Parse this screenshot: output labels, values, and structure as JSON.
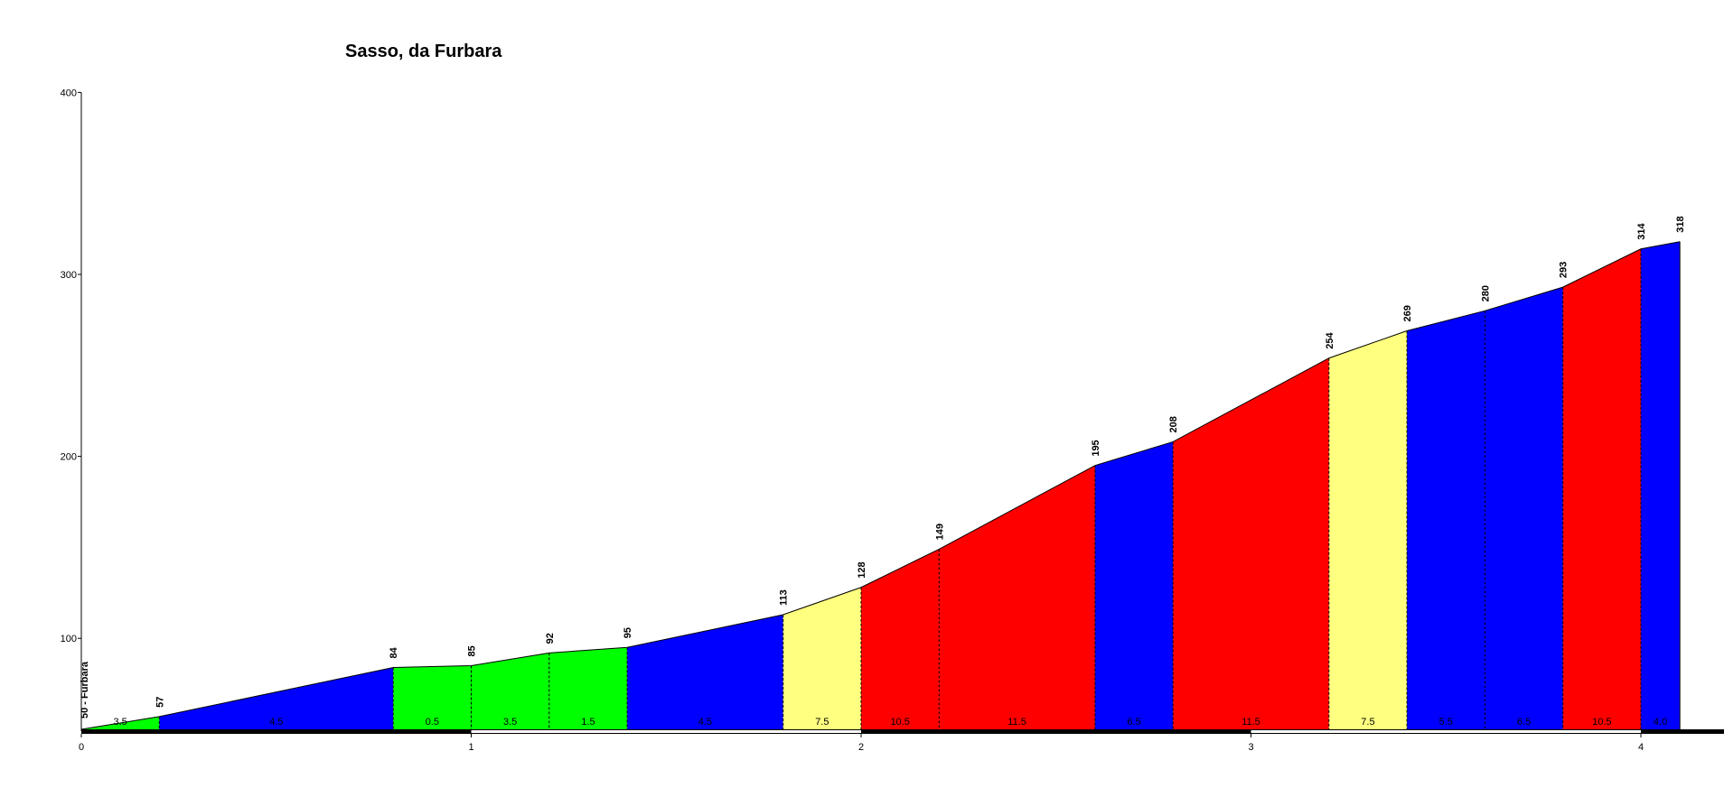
{
  "chart_data": {
    "type": "area",
    "title": "Sasso, da Furbara",
    "xlabel": "",
    "ylabel": "",
    "xlim": [
      0,
      4.2
    ],
    "ylim": [
      50,
      400
    ],
    "x_ticks": [
      "0",
      "1",
      "2",
      "3",
      "4"
    ],
    "y_ticks": [
      "100",
      "200",
      "300",
      "400"
    ],
    "start_label": "50 - Furbara",
    "points": [
      {
        "x": 0.0,
        "y": 50
      },
      {
        "x": 0.2,
        "y": 57
      },
      {
        "x": 0.8,
        "y": 84
      },
      {
        "x": 1.0,
        "y": 85
      },
      {
        "x": 1.2,
        "y": 92
      },
      {
        "x": 1.4,
        "y": 95
      },
      {
        "x": 1.8,
        "y": 113
      },
      {
        "x": 2.0,
        "y": 128
      },
      {
        "x": 2.2,
        "y": 149
      },
      {
        "x": 2.6,
        "y": 195
      },
      {
        "x": 2.8,
        "y": 208
      },
      {
        "x": 3.2,
        "y": 254
      },
      {
        "x": 3.4,
        "y": 269
      },
      {
        "x": 3.6,
        "y": 280
      },
      {
        "x": 3.8,
        "y": 293
      },
      {
        "x": 4.0,
        "y": 314
      },
      {
        "x": 4.1,
        "y": 318
      }
    ],
    "elevation_labels": [
      "57",
      "84",
      "85",
      "92",
      "95",
      "113",
      "128",
      "149",
      "195",
      "208",
      "254",
      "269",
      "280",
      "293",
      "314",
      "318"
    ],
    "segments": [
      {
        "from": 0.0,
        "to": 0.2,
        "grade": "3.5",
        "color": "#00ff00"
      },
      {
        "from": 0.2,
        "to": 0.8,
        "grade": "4.5",
        "color": "#0000ff"
      },
      {
        "from": 0.8,
        "to": 1.0,
        "grade": "0.5",
        "color": "#00ff00"
      },
      {
        "from": 1.0,
        "to": 1.2,
        "grade": "3.5",
        "color": "#00ff00"
      },
      {
        "from": 1.2,
        "to": 1.4,
        "grade": "1.5",
        "color": "#00ff00"
      },
      {
        "from": 1.4,
        "to": 1.8,
        "grade": "4.5",
        "color": "#0000ff"
      },
      {
        "from": 1.8,
        "to": 2.0,
        "grade": "7.5",
        "color": "#ffff80"
      },
      {
        "from": 2.0,
        "to": 2.2,
        "grade": "10.5",
        "color": "#ff0000"
      },
      {
        "from": 2.2,
        "to": 2.6,
        "grade": "11.5",
        "color": "#ff0000"
      },
      {
        "from": 2.6,
        "to": 2.8,
        "grade": "6.5",
        "color": "#0000ff"
      },
      {
        "from": 2.8,
        "to": 3.2,
        "grade": "11.5",
        "color": "#ff0000"
      },
      {
        "from": 3.2,
        "to": 3.4,
        "grade": "7.5",
        "color": "#ffff80"
      },
      {
        "from": 3.4,
        "to": 3.6,
        "grade": "5.5",
        "color": "#0000ff"
      },
      {
        "from": 3.6,
        "to": 3.8,
        "grade": "6.5",
        "color": "#0000ff"
      },
      {
        "from": 3.8,
        "to": 4.0,
        "grade": "10.5",
        "color": "#ff0000"
      },
      {
        "from": 4.0,
        "to": 4.1,
        "grade": "4.0",
        "color": "#0000ff"
      }
    ],
    "grid": false,
    "legend": "none"
  }
}
